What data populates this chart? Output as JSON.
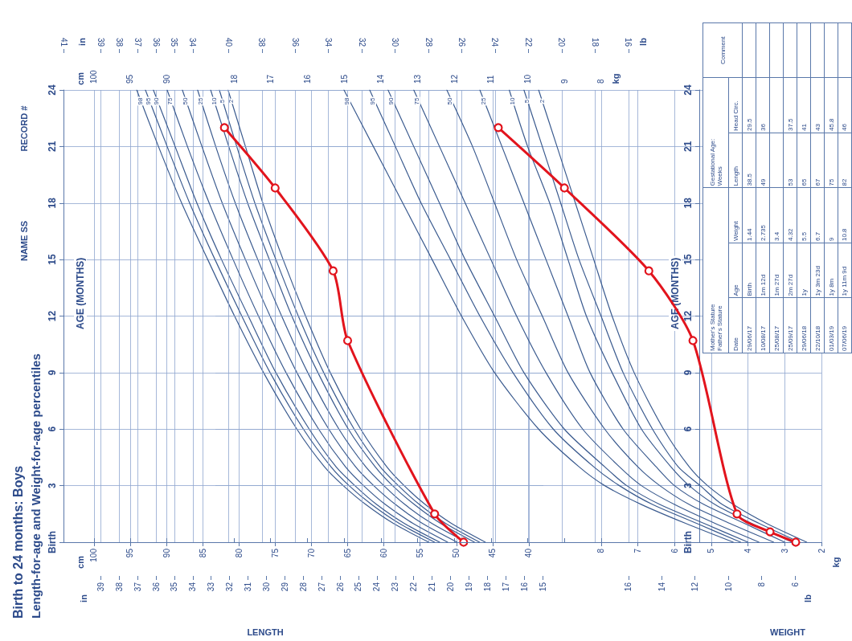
{
  "chart_data": [
    {
      "type": "line",
      "title": "Birth to 24 months: Boys",
      "subtitle": "Length-for-age and Weight-for-age percentiles",
      "ylabel": "AGE (MONTHS)",
      "annotations": [
        "NAME SS",
        "RECORD #",
        "LENGTH",
        "cm",
        "in"
      ],
      "ylim": [
        0,
        24
      ],
      "yticks": [
        {
          "value": 0,
          "label": "Birth"
        },
        3,
        6,
        9,
        12,
        15,
        18,
        21,
        24
      ],
      "xlim": [
        104.2,
        38
      ],
      "xticks": [
        40,
        45,
        50,
        55,
        60,
        65,
        70,
        75,
        80,
        85,
        90,
        95,
        100
      ],
      "x2lim": [
        41.02,
        14.96
      ],
      "x2ticks": [
        34,
        35,
        36,
        37,
        38,
        39,
        41
      ],
      "grid": true,
      "marker": "none",
      "legend": false,
      "series": [
        {
          "name": "98",
          "color": "#3b5b8f",
          "x": [
            53.8,
            58.7,
            62.5,
            65.6,
            68.2,
            72.0,
            76.6,
            80.6,
            84.3,
            87.9,
            91.1,
            94.1
          ],
          "values": [
            0,
            1,
            2,
            3,
            4,
            6,
            9,
            12,
            15,
            18,
            21,
            24
          ]
        },
        {
          "name": "95",
          "color": "#3b5b8f",
          "x": [
            53.0,
            57.9,
            61.7,
            64.8,
            67.3,
            71.1,
            75.7,
            79.6,
            83.3,
            86.8,
            89.9,
            92.9
          ],
          "values": [
            0,
            1,
            2,
            3,
            4,
            6,
            9,
            12,
            15,
            18,
            21,
            24
          ]
        },
        {
          "name": "90",
          "color": "#3b5b8f",
          "x": [
            52.3,
            57.2,
            61.0,
            64.0,
            66.6,
            70.3,
            74.9,
            78.7,
            82.4,
            85.8,
            88.8,
            91.8
          ],
          "values": [
            0,
            1,
            2,
            3,
            4,
            6,
            9,
            12,
            15,
            18,
            21,
            24
          ]
        },
        {
          "name": "75",
          "color": "#3b5b8f",
          "x": [
            51.2,
            56.0,
            59.8,
            62.8,
            65.3,
            69.0,
            73.5,
            77.3,
            80.8,
            84.1,
            87.1,
            89.9
          ],
          "values": [
            0,
            1,
            2,
            3,
            4,
            6,
            9,
            12,
            15,
            18,
            21,
            24
          ]
        },
        {
          "name": "50",
          "color": "#3b5b8f",
          "x": [
            49.9,
            54.7,
            58.4,
            61.4,
            63.9,
            67.6,
            72.0,
            75.7,
            79.1,
            82.3,
            85.1,
            87.8
          ],
          "values": [
            0,
            1,
            2,
            3,
            4,
            6,
            9,
            12,
            15,
            18,
            21,
            24
          ]
        },
        {
          "name": "25",
          "color": "#3b5b8f",
          "x": [
            48.6,
            53.4,
            57.1,
            60.0,
            62.5,
            66.2,
            70.5,
            74.1,
            77.4,
            80.5,
            83.2,
            85.7
          ],
          "values": [
            0,
            1,
            2,
            3,
            4,
            6,
            9,
            12,
            15,
            18,
            21,
            24
          ]
        },
        {
          "name": "10",
          "color": "#3b5b8f",
          "x": [
            47.5,
            52.2,
            55.8,
            58.8,
            61.2,
            64.9,
            69.1,
            72.7,
            75.8,
            78.8,
            81.4,
            83.9
          ],
          "values": [
            0,
            1,
            2,
            3,
            4,
            6,
            9,
            12,
            15,
            18,
            21,
            24
          ]
        },
        {
          "name": "5",
          "color": "#3b5b8f",
          "x": [
            46.8,
            51.5,
            55.1,
            58.0,
            60.5,
            64.1,
            68.3,
            71.8,
            74.9,
            77.8,
            80.3,
            82.7
          ],
          "values": [
            0,
            1,
            2,
            3,
            4,
            6,
            9,
            12,
            15,
            18,
            21,
            24
          ]
        },
        {
          "name": "2",
          "color": "#3b5b8f",
          "x": [
            46.0,
            50.7,
            54.3,
            57.2,
            59.6,
            63.2,
            67.4,
            70.8,
            73.9,
            76.7,
            79.1,
            81.5
          ],
          "values": [
            0,
            1,
            2,
            3,
            4,
            6,
            9,
            12,
            15,
            18,
            21,
            24
          ]
        }
      ]
    },
    {
      "type": "line",
      "ylabel": "AGE (MONTHS)",
      "annotations": [
        "WEIGHT",
        "kg",
        "lb"
      ],
      "ylim": [
        0,
        24
      ],
      "yticks": [
        {
          "value": 0,
          "label": "Birth"
        },
        3,
        6,
        9,
        12,
        15,
        18,
        21,
        24
      ],
      "xlim": [
        18.5,
        2
      ],
      "xticks": [
        2,
        3,
        4,
        5,
        6,
        7,
        8
      ],
      "x2lim": [
        40.79,
        4.41
      ],
      "x2ticks": [
        16,
        18,
        20,
        22,
        24,
        26,
        28,
        30,
        32,
        34,
        36,
        38,
        40
      ],
      "grid": true,
      "marker": "none",
      "legend": false,
      "series": [
        {
          "name": "98",
          "color": "#3b5b8f",
          "x": [
            4.4,
            5.7,
            6.9,
            7.9,
            8.6,
            9.7,
            10.9,
            11.8,
            12.6,
            13.4,
            14.2,
            15.0
          ],
          "values": [
            0,
            1,
            2,
            3,
            4,
            6,
            9,
            12,
            15,
            18,
            21,
            24
          ]
        },
        {
          "name": "95",
          "color": "#3b5b8f",
          "x": [
            4.2,
            5.4,
            6.6,
            7.5,
            8.2,
            9.3,
            10.4,
            11.3,
            12.1,
            12.9,
            13.6,
            14.3
          ],
          "values": [
            0,
            1,
            2,
            3,
            4,
            6,
            9,
            12,
            15,
            18,
            21,
            24
          ]
        },
        {
          "name": "90",
          "color": "#3b5b8f",
          "x": [
            4.0,
            5.2,
            6.4,
            7.3,
            7.9,
            9.0,
            10.1,
            10.9,
            11.7,
            12.4,
            13.1,
            13.8
          ],
          "values": [
            0,
            1,
            2,
            3,
            4,
            6,
            9,
            12,
            15,
            18,
            21,
            24
          ]
        },
        {
          "name": "75",
          "color": "#3b5b8f",
          "x": [
            3.7,
            4.9,
            6.0,
            6.9,
            7.5,
            8.5,
            9.5,
            10.3,
            11.0,
            11.7,
            12.4,
            13.1
          ],
          "values": [
            0,
            1,
            2,
            3,
            4,
            6,
            9,
            12,
            15,
            18,
            21,
            24
          ]
        },
        {
          "name": "50",
          "color": "#3b5b8f",
          "x": [
            3.3,
            4.5,
            5.6,
            6.4,
            7.0,
            7.9,
            8.9,
            9.6,
            10.3,
            10.9,
            11.5,
            12.2
          ],
          "values": [
            0,
            1,
            2,
            3,
            4,
            6,
            9,
            12,
            15,
            18,
            21,
            24
          ]
        },
        {
          "name": "25",
          "color": "#3b5b8f",
          "x": [
            3.0,
            4.1,
            5.2,
            6.0,
            6.5,
            7.4,
            8.3,
            8.9,
            9.5,
            10.1,
            10.7,
            11.3
          ],
          "values": [
            0,
            1,
            2,
            3,
            4,
            6,
            9,
            12,
            15,
            18,
            21,
            24
          ]
        },
        {
          "name": "10",
          "color": "#3b5b8f",
          "x": [
            2.8,
            3.9,
            4.9,
            5.6,
            6.1,
            6.9,
            7.7,
            8.4,
            8.9,
            9.4,
            10.0,
            10.5
          ],
          "values": [
            0,
            1,
            2,
            3,
            4,
            6,
            9,
            12,
            15,
            18,
            21,
            24
          ]
        },
        {
          "name": "5",
          "color": "#3b5b8f",
          "x": [
            2.6,
            3.7,
            4.7,
            5.3,
            5.9,
            6.6,
            7.4,
            8.0,
            8.6,
            9.1,
            9.6,
            10.1
          ],
          "values": [
            0,
            1,
            2,
            3,
            4,
            6,
            9,
            12,
            15,
            18,
            21,
            24
          ]
        },
        {
          "name": "2",
          "color": "#3b5b8f",
          "x": [
            2.4,
            3.5,
            4.4,
            5.1,
            5.6,
            6.3,
            7.1,
            7.7,
            8.2,
            8.7,
            9.2,
            9.7
          ],
          "values": [
            0,
            1,
            2,
            3,
            4,
            6,
            9,
            12,
            15,
            18,
            21,
            24
          ]
        }
      ]
    },
    {
      "type": "other",
      "annotations": [
        "Mother's Stature",
        "Father's Stature",
        "Gestational Age:",
        "Weeks",
        "Comment"
      ],
      "categories": [
        "Date",
        "Age",
        "Weight",
        "Length",
        "Head Circ."
      ],
      "cell_labels": [
        [
          "29/06/17",
          "Birth",
          "1.44",
          "38.5",
          "29.5"
        ],
        [
          "10/08/17",
          "1m 12d",
          "2.735",
          "49",
          "36"
        ],
        [
          "25/08/17",
          "1m 27d",
          "3.4",
          null,
          null
        ],
        [
          "25/09/17",
          "2m 27d",
          "4.32",
          "53",
          "37.5"
        ],
        [
          "29/06/18",
          "1y",
          "5.5",
          "65",
          "41"
        ],
        [
          "22/10/18",
          "1y 3m 23d",
          "6.7",
          "67",
          "43"
        ],
        [
          "01/03/19",
          "1y 8m",
          "9",
          "75",
          "45.8"
        ],
        [
          "07/06/19",
          "1y 11m 9d",
          "10.8",
          "82",
          "46"
        ]
      ]
    },
    {
      "type": "line",
      "annotations": [
        "cm",
        "in"
      ],
      "tick_labels": "x",
      "ylim": [
        0,
        24
      ],
      "xlim": [
        104.2,
        38
      ],
      "xticks": [
        90,
        95,
        100
      ],
      "x2lim": [
        41.02,
        14.96
      ],
      "x2ticks": [
        15,
        16,
        17,
        18,
        19,
        20,
        21,
        22,
        23,
        24,
        25,
        26,
        27,
        28,
        29,
        30,
        31,
        32,
        33,
        34,
        35,
        36,
        37,
        38,
        39
      ],
      "marker": "circle",
      "series": [
        {
          "color": "#e2141d",
          "x": [
            49,
            53,
            65,
            67,
            75,
            82
          ],
          "values": [
            0,
            1.5,
            10.7,
            14.4,
            18.8,
            22.0
          ]
        }
      ]
    },
    {
      "type": "line",
      "annotations": [
        "kg",
        "lb"
      ],
      "tick_labels": "x",
      "ylim": [
        0,
        24
      ],
      "xlim": [
        18,
        2
      ],
      "xticks": [
        8,
        9,
        10,
        11,
        12,
        13,
        14,
        15,
        16,
        17,
        18
      ],
      "x2lim": [
        39.68,
        4.41
      ],
      "x2ticks": [
        6,
        8,
        10,
        12,
        14,
        16
      ],
      "marker": "circle",
      "series": [
        {
          "color": "#e2141d",
          "x": [
            2.7,
            3.4,
            4.3,
            5.5,
            6.7,
            9,
            10.8
          ],
          "values": [
            0,
            0.55,
            1.5,
            10.7,
            14.4,
            18.8,
            22.0
          ]
        }
      ]
    }
  ]
}
